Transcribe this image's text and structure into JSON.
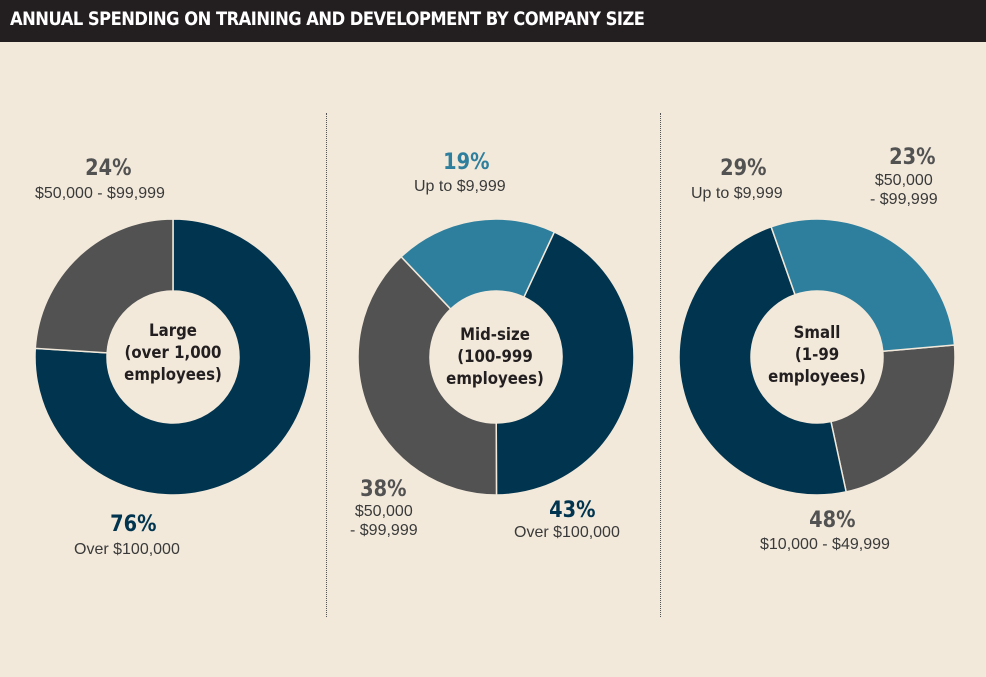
{
  "title": "ANNUAL SPENDING ON TRAINING AND DEVELOPMENT BY COMPANY SIZE",
  "colors": {
    "over_100k": "#01354f",
    "50k_99k": "#525252",
    "up_to_10k": "#2e7f9d",
    "10k_50k": "#01354f"
  },
  "chart_data": [
    {
      "type": "pie",
      "center_label": [
        "Large",
        "(over 1,000",
        "employees)"
      ],
      "slices": [
        {
          "label": "Over $100,000",
          "value": 76,
          "pct_text": "76%",
          "color": "#01354f"
        },
        {
          "label": "$50,000 - $99,999",
          "value": 24,
          "pct_text": "24%",
          "color": "#525252"
        }
      ]
    },
    {
      "type": "pie",
      "center_label": [
        "Mid-size",
        "(100-999",
        "employees)"
      ],
      "slices": [
        {
          "label": "Over $100,000",
          "value": 43,
          "pct_text": "43%",
          "color": "#01354f"
        },
        {
          "label": "$50,000 - $99,999",
          "label_lines": [
            "$50,000",
            "- $99,999"
          ],
          "value": 38,
          "pct_text": "38%",
          "color": "#525252"
        },
        {
          "label": "Up to $9,999",
          "value": 19,
          "pct_text": "19%",
          "color": "#2e7f9d"
        }
      ]
    },
    {
      "type": "pie",
      "center_label": [
        "Small",
        "(1-99",
        "employees)"
      ],
      "slices": [
        {
          "label": "$50,000 - $99,999",
          "label_lines": [
            "$50,000",
            "- $99,999"
          ],
          "value": 23,
          "pct_text": "23%",
          "color": "#525252"
        },
        {
          "label": "$10,000 - $49,999",
          "value": 48,
          "pct_text": "48%",
          "color": "#01354f"
        },
        {
          "label": "Up to $9,999",
          "value": 29,
          "pct_text": "29%",
          "color": "#2e7f9d"
        }
      ]
    }
  ]
}
